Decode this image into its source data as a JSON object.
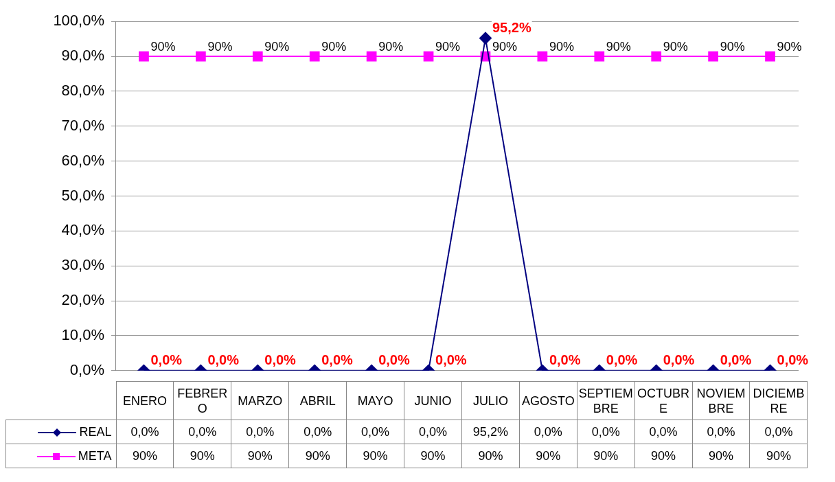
{
  "chart_data": {
    "type": "line",
    "categories": [
      "ENERO",
      "FEBRERO",
      "MARZO",
      "ABRIL",
      "MAYO",
      "JUNIO",
      "JULIO",
      "AGOSTO",
      "SEPTIEMBRE",
      "OCTUBRE",
      "NOVIEMBRE",
      "DICIEMBRE"
    ],
    "series": [
      {
        "name": "REAL",
        "color": "#000080",
        "marker": "diamond",
        "values": [
          0,
          0,
          0,
          0,
          0,
          0,
          95.2,
          0,
          0,
          0,
          0,
          0
        ],
        "value_labels": [
          "0,0%",
          "0,0%",
          "0,0%",
          "0,0%",
          "0,0%",
          "0,0%",
          "95,2%",
          "0,0%",
          "0,0%",
          "0,0%",
          "0,0%",
          "0,0%"
        ]
      },
      {
        "name": "META",
        "color": "#ff00ff",
        "marker": "square",
        "values": [
          90,
          90,
          90,
          90,
          90,
          90,
          90,
          90,
          90,
          90,
          90,
          90
        ],
        "value_labels": [
          "90%",
          "90%",
          "90%",
          "90%",
          "90%",
          "90%",
          "90%",
          "90%",
          "90%",
          "90%",
          "90%",
          "90%"
        ]
      }
    ],
    "ylim": [
      0,
      100
    ],
    "yticks": [
      {
        "value": 0,
        "label": "0,0%"
      },
      {
        "value": 10,
        "label": "10,0%"
      },
      {
        "value": 20,
        "label": "20,0%"
      },
      {
        "value": 30,
        "label": "30,0%"
      },
      {
        "value": 40,
        "label": "40,0%"
      },
      {
        "value": 50,
        "label": "50,0%"
      },
      {
        "value": 60,
        "label": "60,0%"
      },
      {
        "value": 70,
        "label": "70,0%"
      },
      {
        "value": 80,
        "label": "80,0%"
      },
      {
        "value": 90,
        "label": "90,0%"
      },
      {
        "value": 100,
        "label": "100,0%"
      }
    ],
    "grid": "y",
    "legend": "bottom",
    "line_style": "solid"
  }
}
